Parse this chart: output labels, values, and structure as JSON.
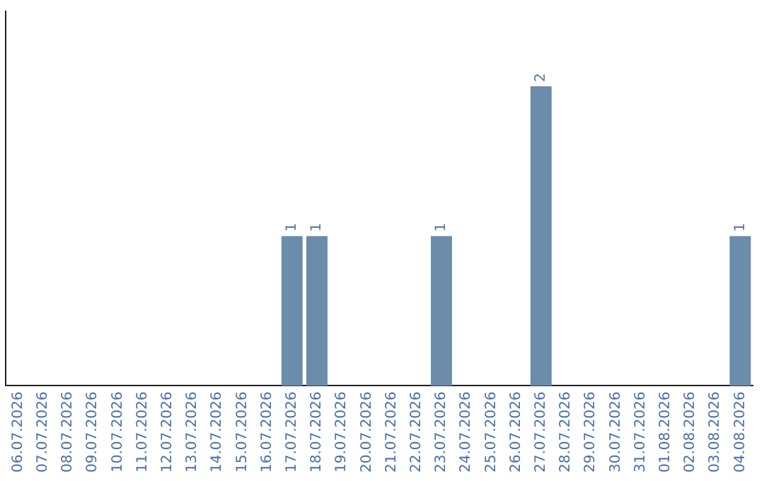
{
  "chart_data": {
    "type": "bar",
    "categories": [
      "06.07.2026",
      "07.07.2026",
      "08.07.2026",
      "09.07.2026",
      "10.07.2026",
      "11.07.2026",
      "12.07.2026",
      "13.07.2026",
      "14.07.2026",
      "15.07.2026",
      "16.07.2026",
      "17.07.2026",
      "18.07.2026",
      "19.07.2026",
      "20.07.2026",
      "21.07.2026",
      "22.07.2026",
      "23.07.2026",
      "24.07.2026",
      "25.07.2026",
      "26.07.2026",
      "27.07.2026",
      "28.07.2026",
      "29.07.2026",
      "30.07.2026",
      "31.07.2026",
      "01.08.2026",
      "02.08.2026",
      "03.08.2026",
      "04.08.2026"
    ],
    "values": [
      0,
      0,
      0,
      0,
      0,
      0,
      0,
      0,
      0,
      0,
      0,
      1,
      1,
      0,
      0,
      0,
      0,
      1,
      0,
      0,
      0,
      2,
      0,
      0,
      0,
      0,
      0,
      0,
      0,
      1
    ],
    "value_labels": [
      null,
      null,
      null,
      null,
      null,
      null,
      null,
      null,
      null,
      null,
      null,
      "1",
      "1",
      null,
      null,
      null,
      null,
      "1",
      null,
      null,
      null,
      "2",
      null,
      null,
      null,
      null,
      null,
      null,
      null,
      "1"
    ],
    "color": "#6b8cab",
    "tick_labels": "x",
    "grid": false,
    "legend": false
  }
}
